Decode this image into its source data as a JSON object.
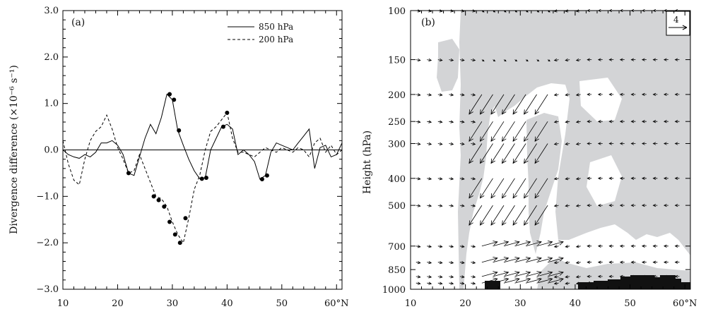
{
  "chart_data": [
    {
      "type": "line",
      "panel_label": "(a)",
      "ylabel": "Divergence difference (×10⁻⁶ s⁻¹)",
      "xlim": [
        10,
        61
      ],
      "ylim": [
        -3.0,
        3.0
      ],
      "x_ticks": [
        10,
        20,
        30,
        40,
        50,
        60
      ],
      "x_tick_labels": [
        "10",
        "20",
        "30",
        "40",
        "50",
        "60°N"
      ],
      "y_ticks": [
        -3.0,
        -2.0,
        -1.0,
        0.0,
        1.0,
        2.0,
        3.0
      ],
      "y_tick_labels": [
        "−3.0",
        "−2.0",
        "−1.0",
        "0.0",
        "1.0",
        "2.0",
        "3.0"
      ],
      "legend_position": "top-right",
      "series": [
        {
          "name": "850 hPa",
          "style": "solid",
          "x": [
            10,
            11,
            12,
            13,
            14,
            15,
            16,
            17,
            18,
            19,
            20,
            21,
            22,
            23,
            24,
            25,
            26,
            27,
            28,
            29,
            30,
            31,
            32,
            33,
            34,
            35,
            36,
            37,
            38,
            39,
            40,
            41,
            42,
            43,
            44,
            45,
            46,
            47,
            48,
            49,
            50,
            51,
            52,
            53,
            54,
            55,
            56,
            57,
            58,
            59,
            60,
            61
          ],
          "y": [
            0.0,
            -0.1,
            -0.15,
            -0.18,
            -0.1,
            -0.15,
            -0.05,
            0.15,
            0.15,
            0.2,
            0.1,
            -0.1,
            -0.5,
            -0.55,
            -0.15,
            0.25,
            0.55,
            0.35,
            0.7,
            1.2,
            1.08,
            0.42,
            0.1,
            -0.2,
            -0.45,
            -0.62,
            -0.6,
            0.0,
            0.25,
            0.5,
            0.55,
            0.45,
            -0.1,
            0.0,
            -0.1,
            -0.25,
            -0.63,
            -0.55,
            -0.05,
            0.15,
            0.1,
            0.05,
            0.0,
            0.15,
            0.3,
            0.45,
            -0.4,
            0.05,
            0.1,
            -0.15,
            -0.1,
            0.15
          ],
          "markers_x": [
            22,
            29.5,
            30.3,
            31.2,
            35.4,
            36.2,
            39.3,
            46.4,
            47.3
          ],
          "markers_y": [
            -0.5,
            1.2,
            1.08,
            0.42,
            -0.62,
            -0.6,
            0.5,
            -0.63,
            -0.55
          ]
        },
        {
          "name": "200 hPa",
          "style": "dashed",
          "x": [
            10,
            11,
            12,
            13,
            14,
            15,
            16,
            17,
            18,
            19,
            20,
            21,
            22,
            23,
            24,
            25,
            26,
            27,
            28,
            29,
            30,
            31,
            32,
            33,
            34,
            35,
            36,
            37,
            38,
            39,
            40,
            41,
            42,
            43,
            44,
            45,
            46,
            47,
            48,
            49,
            50,
            51,
            52,
            53,
            54,
            55,
            56,
            57,
            58,
            59,
            60,
            61
          ],
          "y": [
            0.2,
            -0.3,
            -0.65,
            -0.75,
            -0.2,
            0.2,
            0.4,
            0.5,
            0.75,
            0.45,
            0.05,
            -0.2,
            -0.5,
            -0.45,
            -0.1,
            -0.4,
            -0.7,
            -1.0,
            -1.05,
            -1.22,
            -1.55,
            -1.82,
            -2.0,
            -1.47,
            -0.85,
            -0.55,
            0.0,
            0.4,
            0.5,
            0.65,
            0.8,
            0.25,
            -0.05,
            -0.05,
            -0.1,
            -0.15,
            -0.05,
            0.05,
            0.0,
            -0.05,
            0.05,
            0.0,
            -0.05,
            0.05,
            0.0,
            -0.15,
            0.15,
            0.25,
            -0.05,
            0.1,
            -0.1,
            0.0
          ],
          "markers_x": [
            26.6,
            27.5,
            28.5,
            29.5,
            30.5,
            31.4,
            32.4,
            40.0
          ],
          "markers_y": [
            -1.0,
            -1.08,
            -1.22,
            -1.55,
            -1.82,
            -2.0,
            -1.47,
            0.8
          ]
        }
      ]
    },
    {
      "type": "vector-contour",
      "panel_label": "(b)",
      "ylabel": "Height (hPa)",
      "xlim": [
        10,
        61
      ],
      "y_scale": "log-pressure",
      "ylim": [
        1000,
        100
      ],
      "x_ticks": [
        10,
        20,
        30,
        40,
        50,
        60
      ],
      "x_tick_labels": [
        "10",
        "20",
        "30",
        "40",
        "50",
        "60°N"
      ],
      "y_ticks": [
        100,
        150,
        200,
        250,
        300,
        400,
        500,
        700,
        850,
        1000
      ],
      "y_tick_labels": [
        "100",
        "150",
        "200",
        "250",
        "300",
        "400",
        "500",
        "700",
        "850",
        "1000"
      ],
      "reference_vector_label": "4",
      "shading_color": "#d3d4d6",
      "terrain_color": "#111111",
      "vector_levels": [
        100,
        150,
        200,
        250,
        300,
        400,
        500,
        700,
        800,
        900,
        950
      ]
    }
  ]
}
